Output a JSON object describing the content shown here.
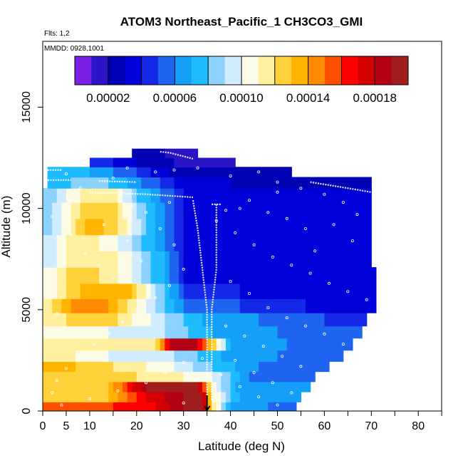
{
  "chart_data": {
    "type": "heatmap",
    "title": "ATOM3 Northeast_Pacific_1 CH3CO3_GMI",
    "flights_label": "Flts: 1,2",
    "dates_label": "MMDD: 0928,1001",
    "xlabel": "Latitude (deg N)",
    "ylabel": "Altitude (m)",
    "xlim": [
      0,
      85
    ],
    "ylim": [
      0,
      17800
    ],
    "xticks": [
      0,
      5,
      10,
      15,
      20,
      25,
      30,
      35,
      40,
      45,
      50,
      55,
      60,
      65,
      70,
      75,
      80,
      85
    ],
    "xtick_labels": [
      "0",
      "5",
      "10",
      "20",
      "30",
      "40",
      "50",
      "60",
      "70",
      "80"
    ],
    "xtick_label_values": [
      0,
      5,
      10,
      20,
      30,
      40,
      50,
      60,
      70,
      80
    ],
    "yticks": [
      0,
      5000,
      10000,
      15000
    ],
    "ytick_labels": [
      "0",
      "5000",
      "10000",
      "15000"
    ],
    "colorbar": {
      "min": 0.0,
      "max": 0.0002,
      "tick_values": [
        2e-05,
        6e-05,
        0.0001,
        0.00014,
        0.00018
      ],
      "tick_labels": [
        "0.00002",
        "0.00006",
        "0.00010",
        "0.00014",
        "0.00018"
      ],
      "colors": [
        "#7a1fe8",
        "#2a14c8",
        "#0000b4",
        "#0000d8",
        "#1428e8",
        "#1e64f0",
        "#14a0f8",
        "#1ebcff",
        "#8cd2ff",
        "#d2ecff",
        "#fcfce6",
        "#fff0a0",
        "#ffd23c",
        "#ffb400",
        "#ff8c00",
        "#ff5000",
        "#ff0000",
        "#d20000",
        "#b40014",
        "#a01e1e"
      ]
    },
    "marker_latitude": 35,
    "altitude_levels_m": [
      200,
      700,
      1200,
      1700,
      2200,
      2700,
      3300,
      3900,
      4500,
      5200,
      5900,
      6700,
      7500,
      8300,
      9100,
      9900,
      10700,
      11300,
      11800,
      12300,
      12700
    ],
    "rows": [
      {
        "alt": 200,
        "x0": 0,
        "x1": 54,
        "anchors": [
          [
            0,
            0.00015
          ],
          [
            15,
            0.00016
          ],
          [
            24,
            0.00017
          ],
          [
            30,
            0.00019
          ],
          [
            34,
            0.00019
          ],
          [
            36,
            0.00012
          ],
          [
            40,
            7e-05
          ],
          [
            48,
            6e-05
          ],
          [
            54,
            5e-05
          ]
        ]
      },
      {
        "alt": 700,
        "x0": 0,
        "x1": 55,
        "anchors": [
          [
            0,
            0.00013
          ],
          [
            14,
            0.00013
          ],
          [
            22,
            0.00017
          ],
          [
            30,
            0.00019
          ],
          [
            34,
            0.00019
          ],
          [
            36,
            0.00011
          ],
          [
            42,
            7e-05
          ],
          [
            55,
            6e-05
          ]
        ]
      },
      {
        "alt": 1200,
        "x0": 0,
        "x1": 57,
        "anchors": [
          [
            0,
            0.00013
          ],
          [
            14,
            0.00013
          ],
          [
            22,
            0.00019
          ],
          [
            33,
            0.00019
          ],
          [
            36,
            0.00011
          ],
          [
            42,
            6e-05
          ],
          [
            57,
            6e-05
          ]
        ]
      },
      {
        "alt": 1700,
        "x0": 0,
        "x1": 58,
        "anchors": [
          [
            0,
            0.00013
          ],
          [
            20,
            0.00012
          ],
          [
            30,
            0.00011
          ],
          [
            36,
            0.0001
          ],
          [
            44,
            6e-05
          ],
          [
            58,
            5e-05
          ]
        ]
      },
      {
        "alt": 2200,
        "x0": 0,
        "x1": 61,
        "anchors": [
          [
            0,
            0.00014
          ],
          [
            15,
            0.00012
          ],
          [
            28,
            0.0001
          ],
          [
            36,
            8e-05
          ],
          [
            46,
            6e-05
          ],
          [
            61,
            5e-05
          ]
        ]
      },
      {
        "alt": 2700,
        "x0": 0,
        "x1": 64,
        "anchors": [
          [
            0,
            0.00012
          ],
          [
            14,
            0.0001
          ],
          [
            28,
            9e-05
          ],
          [
            38,
            7e-05
          ],
          [
            50,
            6e-05
          ],
          [
            64,
            5e-05
          ]
        ]
      },
      {
        "alt": 3300,
        "x0": 0,
        "x1": 66,
        "anchors": [
          [
            0,
            0.00011
          ],
          [
            14,
            0.00011
          ],
          [
            24,
            0.00011
          ],
          [
            27,
            0.00018
          ],
          [
            32,
            0.00019
          ],
          [
            36,
            0.00013
          ],
          [
            40,
            7e-05
          ],
          [
            52,
            6e-05
          ],
          [
            66,
            5e-05
          ]
        ]
      },
      {
        "alt": 3900,
        "x0": 0,
        "x1": 68,
        "anchors": [
          [
            0,
            0.00011
          ],
          [
            14,
            0.0001
          ],
          [
            26,
            9e-05
          ],
          [
            36,
            7e-05
          ],
          [
            50,
            6e-05
          ],
          [
            68,
            5e-05
          ]
        ]
      },
      {
        "alt": 4500,
        "x0": 0,
        "x1": 69,
        "anchors": [
          [
            0,
            0.00011
          ],
          [
            10,
            0.00013
          ],
          [
            16,
            0.00012
          ],
          [
            26,
            9e-05
          ],
          [
            34,
            7e-05
          ],
          [
            46,
            6e-05
          ],
          [
            60,
            5e-05
          ],
          [
            69,
            4e-05
          ]
        ]
      },
      {
        "alt": 5200,
        "x0": 0,
        "x1": 71,
        "anchors": [
          [
            0,
            0.00011
          ],
          [
            6,
            0.00014
          ],
          [
            14,
            0.00014
          ],
          [
            22,
            0.0001
          ],
          [
            32,
            5e-05
          ],
          [
            42,
            5e-05
          ],
          [
            56,
            4e-05
          ],
          [
            71,
            3e-05
          ]
        ]
      },
      {
        "alt": 5900,
        "x0": 0,
        "x1": 71,
        "anchors": [
          [
            0,
            0.0001
          ],
          [
            8,
            0.00013
          ],
          [
            18,
            0.00014
          ],
          [
            24,
            9e-05
          ],
          [
            32,
            4e-05
          ],
          [
            42,
            4e-05
          ],
          [
            56,
            3e-05
          ],
          [
            71,
            3e-05
          ]
        ]
      },
      {
        "alt": 6700,
        "x0": 0,
        "x1": 71,
        "anchors": [
          [
            0,
            0.0001
          ],
          [
            8,
            0.00013
          ],
          [
            16,
            0.00011
          ],
          [
            26,
            7e-05
          ],
          [
            32,
            3e-05
          ],
          [
            42,
            4e-05
          ],
          [
            56,
            3e-05
          ],
          [
            71,
            3e-05
          ]
        ]
      },
      {
        "alt": 7500,
        "x0": 0,
        "x1": 70,
        "anchors": [
          [
            0,
            9e-05
          ],
          [
            8,
            0.00012
          ],
          [
            16,
            0.00011
          ],
          [
            26,
            7e-05
          ],
          [
            32,
            3e-05
          ],
          [
            42,
            4e-05
          ],
          [
            56,
            3e-05
          ],
          [
            70,
            4e-05
          ]
        ]
      },
      {
        "alt": 8300,
        "x0": 0,
        "x1": 70,
        "anchors": [
          [
            0,
            9e-05
          ],
          [
            8,
            0.00012
          ],
          [
            16,
            0.0001
          ],
          [
            24,
            7e-05
          ],
          [
            32,
            3e-05
          ],
          [
            42,
            4e-05
          ],
          [
            56,
            3e-05
          ],
          [
            70,
            4e-05
          ]
        ]
      },
      {
        "alt": 9100,
        "x0": 0,
        "x1": 70,
        "anchors": [
          [
            0,
            8e-05
          ],
          [
            6,
            0.00011
          ],
          [
            10,
            0.00014
          ],
          [
            16,
            0.00012
          ],
          [
            24,
            7e-05
          ],
          [
            32,
            3e-05
          ],
          [
            42,
            4e-05
          ],
          [
            56,
            3e-05
          ],
          [
            70,
            4e-05
          ]
        ]
      },
      {
        "alt": 9900,
        "x0": 0,
        "x1": 70,
        "anchors": [
          [
            0,
            8e-05
          ],
          [
            8,
            0.00012
          ],
          [
            14,
            0.00013
          ],
          [
            22,
            8e-05
          ],
          [
            32,
            3e-05
          ],
          [
            42,
            4e-05
          ],
          [
            56,
            3e-05
          ],
          [
            70,
            3e-05
          ]
        ]
      },
      {
        "alt": 10700,
        "x0": 0,
        "x1": 70,
        "anchors": [
          [
            0,
            8e-05
          ],
          [
            8,
            0.00011
          ],
          [
            14,
            0.00012
          ],
          [
            20,
            8e-05
          ],
          [
            30,
            4e-05
          ],
          [
            40,
            3e-05
          ],
          [
            56,
            3e-05
          ],
          [
            70,
            3e-05
          ]
        ]
      },
      {
        "alt": 11300,
        "x0": 1,
        "x1": 70,
        "anchors": [
          [
            1,
            7e-05
          ],
          [
            10,
            9e-05
          ],
          [
            18,
            7e-05
          ],
          [
            28,
            4e-05
          ],
          [
            40,
            3e-05
          ],
          [
            56,
            2e-05
          ],
          [
            70,
            3e-05
          ]
        ]
      },
      {
        "alt": 11800,
        "x0": 1,
        "x1": 53,
        "anchors": [
          [
            1,
            7e-05
          ],
          [
            10,
            7e-05
          ],
          [
            20,
            5e-05
          ],
          [
            30,
            2e-05
          ],
          [
            40,
            2e-05
          ],
          [
            53,
            2e-05
          ]
        ]
      },
      {
        "alt": 12300,
        "x0": 10,
        "x1": 41,
        "anchors": [
          [
            10,
            5e-05
          ],
          [
            20,
            3e-05
          ],
          [
            28,
            2e-05
          ],
          [
            34,
            1e-05
          ],
          [
            41,
            2e-05
          ]
        ]
      },
      {
        "alt": 12700,
        "x0": 19,
        "x1": 33,
        "anchors": [
          [
            19,
            2e-05
          ],
          [
            26,
            2e-05
          ],
          [
            33,
            1e-05
          ]
        ]
      }
    ],
    "flight_track_segments": [
      {
        "name": "track-seg-1",
        "points": [
          [
            1,
            11900
          ],
          [
            4,
            11900
          ]
        ]
      },
      {
        "name": "track-seg-2",
        "points": [
          [
            0,
            11400
          ],
          [
            6,
            11400
          ]
        ]
      },
      {
        "name": "track-seg-3",
        "points": [
          [
            10,
            12550
          ],
          [
            14,
            12550
          ]
        ]
      },
      {
        "name": "track-seg-4",
        "points": [
          [
            12,
            11350
          ],
          [
            20,
            11300
          ]
        ]
      },
      {
        "name": "track-seg-5",
        "points": [
          [
            10,
            10800
          ],
          [
            22,
            10700
          ],
          [
            32,
            10550
          ]
        ]
      },
      {
        "name": "track-seg-6",
        "points": [
          [
            25,
            12800
          ],
          [
            27,
            12750
          ],
          [
            32,
            12450
          ]
        ]
      },
      {
        "name": "track-seg-7",
        "points": [
          [
            36,
            10200
          ],
          [
            38,
            10200
          ]
        ]
      },
      {
        "name": "track-seg-8",
        "points": [
          [
            57,
            11300
          ],
          [
            65,
            11000
          ],
          [
            70,
            10800
          ]
        ]
      },
      {
        "name": "track-seg-9",
        "points": [
          [
            32,
            10400
          ],
          [
            33,
            9000
          ],
          [
            34,
            7000
          ],
          [
            35,
            5000
          ],
          [
            35,
            3000
          ],
          [
            35,
            1000
          ],
          [
            35,
            300
          ]
        ]
      },
      {
        "name": "track-seg-10",
        "points": [
          [
            37,
            10200
          ],
          [
            37,
            7000
          ],
          [
            36,
            5000
          ],
          [
            36,
            3000
          ],
          [
            36,
            500
          ]
        ]
      }
    ],
    "scatter_points": [
      [
        5,
        11700
      ],
      [
        8,
        11000
      ],
      [
        15,
        11500
      ],
      [
        18,
        12000
      ],
      [
        24,
        11800
      ],
      [
        28,
        11900
      ],
      [
        33,
        12000
      ],
      [
        40,
        11600
      ],
      [
        46,
        11800
      ],
      [
        50,
        11300
      ],
      [
        55,
        11000
      ],
      [
        60,
        10700
      ],
      [
        64,
        10300
      ],
      [
        67,
        9700
      ],
      [
        44,
        10400
      ],
      [
        48,
        9800
      ],
      [
        52,
        9500
      ],
      [
        56,
        9000
      ],
      [
        41,
        8800
      ],
      [
        45,
        8200
      ],
      [
        49,
        7600
      ],
      [
        53,
        7200
      ],
      [
        57,
        6800
      ],
      [
        61,
        6300
      ],
      [
        65,
        5900
      ],
      [
        69,
        5500
      ],
      [
        40,
        6400
      ],
      [
        44,
        5800
      ],
      [
        48,
        5100
      ],
      [
        52,
        4600
      ],
      [
        56,
        4200
      ],
      [
        60,
        3800
      ],
      [
        64,
        3300
      ],
      [
        39,
        4200
      ],
      [
        43,
        3700
      ],
      [
        47,
        3200
      ],
      [
        51,
        2700
      ],
      [
        55,
        2200
      ],
      [
        59,
        1700
      ],
      [
        41,
        2500
      ],
      [
        45,
        1900
      ],
      [
        49,
        1400
      ],
      [
        53,
        900
      ],
      [
        38,
        1800
      ],
      [
        42,
        1200
      ],
      [
        46,
        700
      ],
      [
        50,
        300
      ],
      [
        22,
        9800
      ],
      [
        25,
        9000
      ],
      [
        28,
        8200
      ],
      [
        30,
        7000
      ],
      [
        27,
        6200
      ],
      [
        24,
        5600
      ],
      [
        20,
        5000
      ],
      [
        17,
        4400
      ],
      [
        14,
        3800
      ],
      [
        11,
        3300
      ],
      [
        8,
        2700
      ],
      [
        5,
        2100
      ],
      [
        3,
        1500
      ],
      [
        2,
        900
      ],
      [
        4,
        300
      ],
      [
        10,
        600
      ],
      [
        16,
        1000
      ],
      [
        22,
        1400
      ],
      [
        26,
        1900
      ],
      [
        30,
        2400
      ],
      [
        6,
        8700
      ],
      [
        9,
        7800
      ],
      [
        12,
        7200
      ],
      [
        15,
        6600
      ],
      [
        18,
        8400
      ],
      [
        21,
        7400
      ],
      [
        1,
        6000
      ],
      [
        3,
        4800
      ],
      [
        2,
        9600
      ],
      [
        62,
        9200
      ],
      [
        66,
        8400
      ],
      [
        58,
        7900
      ],
      [
        42,
        10000
      ],
      [
        50,
        10800
      ],
      [
        30,
        400
      ],
      [
        34,
        2600
      ],
      [
        37,
        9400
      ],
      [
        39,
        9900
      ],
      [
        27,
        10300
      ],
      [
        19,
        10100
      ],
      [
        13,
        9200
      ]
    ]
  }
}
